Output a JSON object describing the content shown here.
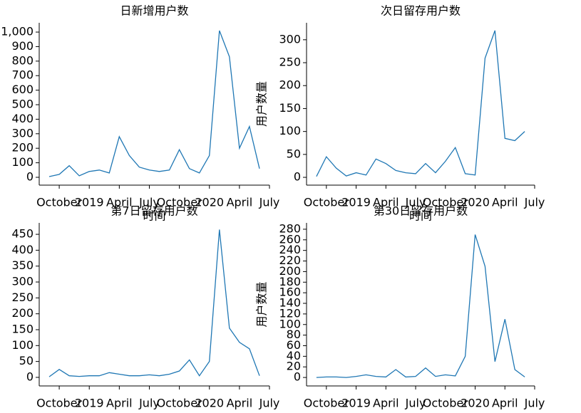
{
  "chart_data": [
    {
      "type": "line",
      "title": "日新增用户数",
      "xlabel": "时间",
      "color": "#1f77b4",
      "x": [
        "2018-09",
        "2018-10",
        "2018-11",
        "2018-12",
        "2019-01",
        "2019-02",
        "2019-03",
        "2019-04",
        "2019-05",
        "2019-06",
        "2019-07",
        "2019-08",
        "2019-09",
        "2019-10",
        "2019-11",
        "2019-12",
        "2020-01",
        "2020-02",
        "2020-03",
        "2020-04",
        "2020-05",
        "2020-06"
      ],
      "values": [
        5,
        20,
        80,
        10,
        40,
        50,
        30,
        280,
        150,
        70,
        50,
        40,
        50,
        190,
        60,
        30,
        150,
        1010,
        830,
        200,
        350,
        60
      ],
      "xlim": [
        "2018-08",
        "2020-07"
      ],
      "xticks": [
        {
          "value": "2018-10",
          "label": "October"
        },
        {
          "value": "2019-01",
          "label": "2019"
        },
        {
          "value": "2019-04",
          "label": "April"
        },
        {
          "value": "2019-07",
          "label": "July"
        },
        {
          "value": "2019-10",
          "label": "October"
        },
        {
          "value": "2020-01",
          "label": "2020"
        },
        {
          "value": "2020-04",
          "label": "April"
        },
        {
          "value": "2020-07",
          "label": "July"
        }
      ],
      "ylim": [
        -54,
        1064
      ],
      "yticks": [
        0,
        100,
        200,
        300,
        400,
        500,
        600,
        700,
        800,
        900,
        {
          "value": 1000,
          "label": "1,000"
        }
      ]
    },
    {
      "type": "line",
      "title": "次日留存用户数",
      "xlabel": "时间",
      "ylabel": "用户数量",
      "color": "#1f77b4",
      "x": [
        "2018-09",
        "2018-10",
        "2018-11",
        "2018-12",
        "2019-01",
        "2019-02",
        "2019-03",
        "2019-04",
        "2019-05",
        "2019-06",
        "2019-07",
        "2019-08",
        "2019-09",
        "2019-10",
        "2019-11",
        "2019-12",
        "2020-01",
        "2020-02",
        "2020-03",
        "2020-04",
        "2020-05",
        "2020-06"
      ],
      "values": [
        2,
        45,
        20,
        3,
        10,
        5,
        40,
        30,
        15,
        10,
        8,
        30,
        10,
        35,
        65,
        8,
        5,
        260,
        320,
        85,
        80,
        100
      ],
      "xlim": [
        "2018-08",
        "2020-07"
      ],
      "xticks": [
        {
          "value": "2018-10",
          "label": "October"
        },
        {
          "value": "2019-01",
          "label": "2019"
        },
        {
          "value": "2019-04",
          "label": "April"
        },
        {
          "value": "2019-07",
          "label": "July"
        },
        {
          "value": "2019-10",
          "label": "October"
        },
        {
          "value": "2020-01",
          "label": "2020"
        },
        {
          "value": "2020-04",
          "label": "April"
        },
        {
          "value": "2020-07",
          "label": "July"
        }
      ],
      "ylim": [
        -17,
        337
      ],
      "yticks": [
        0,
        50,
        100,
        150,
        200,
        250,
        300
      ]
    },
    {
      "type": "line",
      "title": "第7日留存用户数",
      "color": "#1f77b4",
      "x": [
        "2018-09",
        "2018-10",
        "2018-11",
        "2018-12",
        "2019-01",
        "2019-02",
        "2019-03",
        "2019-04",
        "2019-05",
        "2019-06",
        "2019-07",
        "2019-08",
        "2019-09",
        "2019-10",
        "2019-11",
        "2019-12",
        "2020-01",
        "2020-02",
        "2020-03",
        "2020-04",
        "2020-05",
        "2020-06"
      ],
      "values": [
        2,
        25,
        5,
        3,
        5,
        5,
        15,
        10,
        5,
        5,
        8,
        5,
        10,
        20,
        55,
        5,
        50,
        465,
        155,
        110,
        90,
        5
      ],
      "xlim": [
        "2018-08",
        "2020-07"
      ],
      "xticks": [
        {
          "value": "2018-10",
          "label": "October"
        },
        {
          "value": "2019-01",
          "label": "2019"
        },
        {
          "value": "2019-04",
          "label": "April"
        },
        {
          "value": "2019-07",
          "label": "July"
        },
        {
          "value": "2019-10",
          "label": "October"
        },
        {
          "value": "2020-01",
          "label": "2020"
        },
        {
          "value": "2020-04",
          "label": "April"
        },
        {
          "value": "2020-07",
          "label": "July"
        }
      ],
      "ylim": [
        -27,
        486
      ],
      "yticks": [
        0,
        50,
        100,
        150,
        200,
        250,
        300,
        350,
        400,
        450
      ]
    },
    {
      "type": "line",
      "title": "第30日留存用户数",
      "ylabel": "用户数量",
      "color": "#1f77b4",
      "x": [
        "2018-09",
        "2018-10",
        "2018-11",
        "2018-12",
        "2019-01",
        "2019-02",
        "2019-03",
        "2019-04",
        "2019-05",
        "2019-06",
        "2019-07",
        "2019-08",
        "2019-09",
        "2019-10",
        "2019-11",
        "2019-12",
        "2020-01",
        "2020-02",
        "2020-03",
        "2020-04",
        "2020-05",
        "2020-06"
      ],
      "values": [
        0,
        1,
        1,
        0,
        2,
        5,
        2,
        1,
        15,
        1,
        2,
        18,
        2,
        5,
        3,
        40,
        270,
        210,
        30,
        110,
        15,
        1
      ],
      "xlim": [
        "2018-08",
        "2020-07"
      ],
      "xticks": [
        {
          "value": "2018-10",
          "label": "October"
        },
        {
          "value": "2019-01",
          "label": "2019"
        },
        {
          "value": "2019-04",
          "label": "April"
        },
        {
          "value": "2019-07",
          "label": "July"
        },
        {
          "value": "2019-10",
          "label": "October"
        },
        {
          "value": "2020-01",
          "label": "2020"
        },
        {
          "value": "2020-04",
          "label": "April"
        },
        {
          "value": "2020-07",
          "label": "July"
        }
      ],
      "ylim": [
        -16,
        292
      ],
      "yticks": [
        0,
        20,
        40,
        60,
        80,
        100,
        120,
        140,
        160,
        180,
        200,
        220,
        240,
        260,
        280
      ]
    }
  ]
}
